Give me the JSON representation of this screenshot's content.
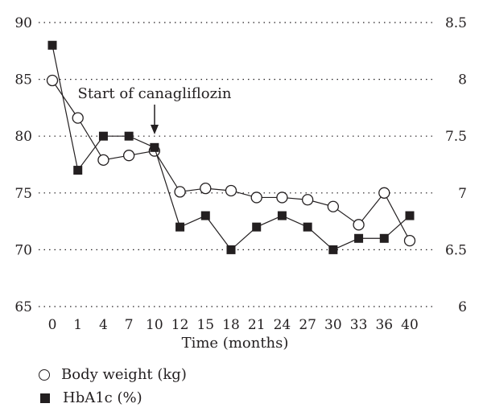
{
  "chart_data": {
    "type": "line",
    "xlabel": "Time (months)",
    "categories": [
      "0",
      "1",
      "4",
      "7",
      "10",
      "12",
      "15",
      "18",
      "21",
      "24",
      "27",
      "30",
      "33",
      "36",
      "40"
    ],
    "left_axis": {
      "ylim": [
        65,
        90
      ],
      "ticks": [
        "90",
        "85",
        "80",
        "75",
        "70",
        "65"
      ]
    },
    "right_axis": {
      "ylim": [
        6,
        8.5
      ],
      "ticks": [
        "8.5",
        "8",
        "7.5",
        "7",
        "6.5",
        "6"
      ]
    },
    "grid": "dotted horizontal",
    "series": [
      {
        "name": "Body weight (kg)",
        "axis": "left",
        "marker": "open-circle",
        "values": [
          84.9,
          81.6,
          77.9,
          78.3,
          78.7,
          75.1,
          75.4,
          75.2,
          74.6,
          74.6,
          74.4,
          73.8,
          72.2,
          75.0,
          70.8
        ]
      },
      {
        "name": "HbA1c (%)",
        "axis": "right",
        "marker": "filled-square",
        "values": [
          8.3,
          7.2,
          7.5,
          7.5,
          7.4,
          6.7,
          6.8,
          6.5,
          6.7,
          6.8,
          6.7,
          6.5,
          6.6,
          6.6,
          6.8
        ]
      }
    ],
    "annotation": {
      "text": "Start of canagliflozin",
      "at_category": "10"
    },
    "legend_placement": "bottom-left"
  },
  "legend": {
    "body_weight": "Body weight (kg)",
    "hba1c": "HbA1c (%)"
  }
}
